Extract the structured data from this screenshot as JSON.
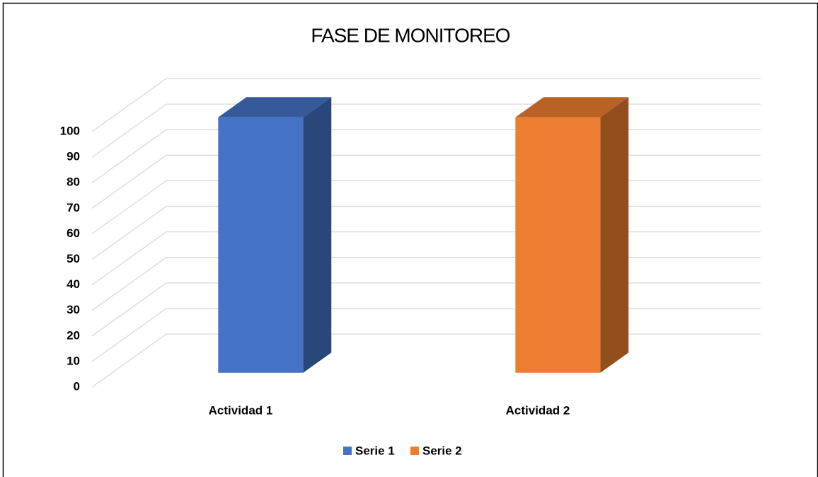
{
  "chart_data": {
    "type": "bar3d",
    "title": "FASE DE MONITOREO",
    "categories": [
      "Actividad 1",
      "Actividad 2"
    ],
    "series": [
      {
        "name": "Serie 1",
        "color": "#4472c4",
        "values": [
          100,
          null
        ]
      },
      {
        "name": "Serie 2",
        "color": "#ed7d31",
        "values": [
          null,
          100
        ]
      }
    ],
    "ylim": [
      0,
      100
    ],
    "yticks": [
      0,
      10,
      20,
      30,
      40,
      50,
      60,
      70,
      80,
      90,
      100
    ],
    "grid": true,
    "legend": "bottom"
  }
}
